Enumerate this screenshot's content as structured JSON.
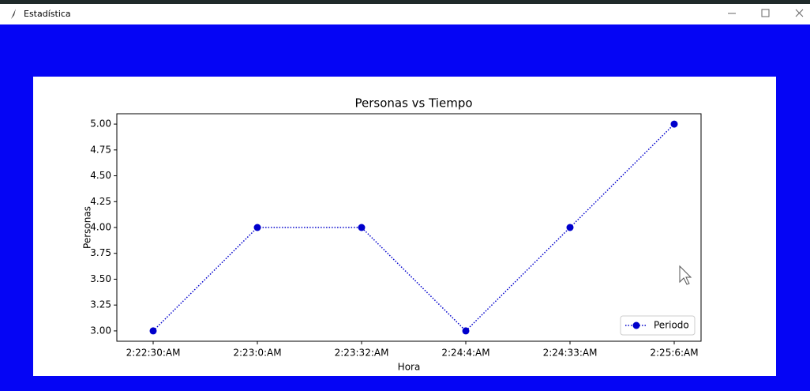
{
  "window": {
    "title": "Estadística"
  },
  "chart_data": {
    "type": "line",
    "title": "Personas vs Tiempo",
    "x_label": "Hora",
    "y_label": "Personas",
    "categories": [
      "2:22:30:AM",
      "2:23:0:AM",
      "2:23:32:AM",
      "2:24:4:AM",
      "2:24:33:AM",
      "2:25:6:AM"
    ],
    "series": [
      {
        "name": "Periodo",
        "color": "#0000cc",
        "line_style": "dotted",
        "values": [
          3,
          4,
          4,
          3,
          4,
          5
        ]
      }
    ],
    "ylim": [
      2.9,
      5.1
    ],
    "yticks": [
      {
        "value": 3,
        "label": "3.00"
      },
      {
        "value": 3.25,
        "label": "3.25"
      },
      {
        "value": 3.5,
        "label": "3.50"
      },
      {
        "value": 3.75,
        "label": "3.75"
      },
      {
        "value": 4,
        "label": "4.00"
      },
      {
        "value": 4.25,
        "label": "4.25"
      },
      {
        "value": 4.5,
        "label": "4.50"
      },
      {
        "value": 4.75,
        "label": "4.75"
      },
      {
        "value": 5,
        "label": "5.00"
      }
    ],
    "grid": false,
    "legend": "lower right"
  }
}
